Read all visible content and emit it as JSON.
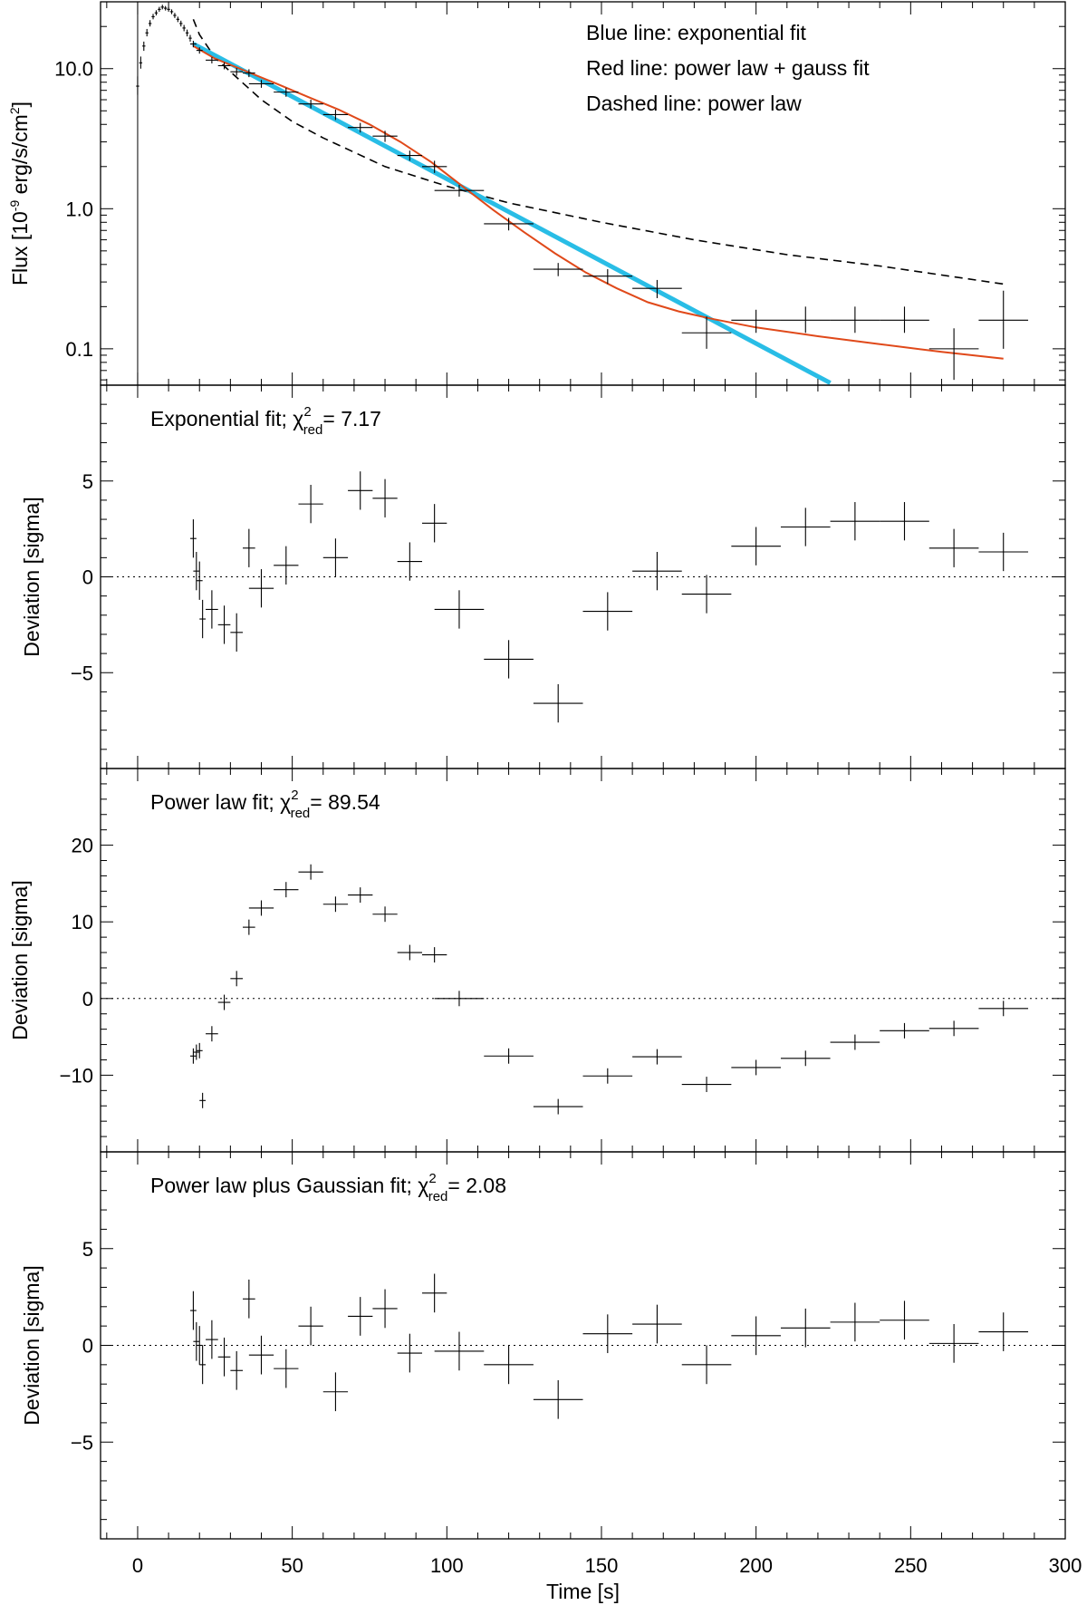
{
  "chart_data": [
    {
      "id": "flux",
      "type": "scatter",
      "yscale": "log",
      "ylabel_prefix": "Flux [10",
      "ylabel_exp": "-9",
      "ylabel_mid": " erg/s/cm",
      "ylabel_sup": "2",
      "ylabel_suffix": "]",
      "ylim": [
        0.055,
        30
      ],
      "xlim": [
        -12,
        300
      ],
      "yticks": [
        0.1,
        1.0,
        10.0
      ],
      "ytick_labels": [
        "0.1",
        "1.0",
        "10.0"
      ],
      "vline_x": 0,
      "legend": [
        "Blue line: exponential fit",
        "Red line: power law + gauss fit",
        "Dashed line: power law"
      ],
      "colors": {
        "exponential": "#29bde6",
        "powergauss": "#e0491a",
        "data": "#000000",
        "powerlaw": "#000000"
      },
      "points": [
        {
          "x": 0,
          "y": 7.5,
          "xerr": 0,
          "yerr": [
            6.5,
            8.8
          ]
        },
        {
          "x": 1,
          "y": 11.0,
          "xerr": 0,
          "yerr": [
            10.0,
            12.2
          ]
        },
        {
          "x": 2,
          "y": 14.5,
          "xerr": 0,
          "yerr": [
            13.4,
            15.6
          ]
        },
        {
          "x": 3,
          "y": 18.0,
          "xerr": 0,
          "yerr": [
            17.0,
            19.2
          ]
        },
        {
          "x": 4,
          "y": 21.0,
          "xerr": 0,
          "yerr": [
            20.0,
            22.2
          ]
        },
        {
          "x": 5,
          "y": 23.5,
          "xerr": 0,
          "yerr": [
            22.5,
            24.6
          ]
        },
        {
          "x": 6,
          "y": 25.0,
          "xerr": 0,
          "yerr": [
            24.0,
            26.1
          ]
        },
        {
          "x": 7,
          "y": 26.5,
          "xerr": 0,
          "yerr": [
            25.5,
            27.6
          ]
        },
        {
          "x": 8,
          "y": 27.5,
          "xerr": 0,
          "yerr": [
            26.5,
            28.6
          ]
        },
        {
          "x": 9,
          "y": 27.0,
          "xerr": 0,
          "yerr": [
            26.0,
            28.0
          ]
        },
        {
          "x": 10,
          "y": 26.5,
          "xerr": 0,
          "yerr": [
            25.5,
            27.5
          ]
        },
        {
          "x": 11,
          "y": 25.5,
          "xerr": 0,
          "yerr": [
            24.5,
            26.5
          ]
        },
        {
          "x": 12,
          "y": 24.0,
          "xerr": 0,
          "yerr": [
            23.0,
            25.0
          ]
        },
        {
          "x": 13,
          "y": 22.5,
          "xerr": 0,
          "yerr": [
            21.5,
            23.5
          ]
        },
        {
          "x": 14,
          "y": 21.0,
          "xerr": 0,
          "yerr": [
            20.0,
            22.0
          ]
        },
        {
          "x": 15,
          "y": 19.5,
          "xerr": 0,
          "yerr": [
            18.5,
            20.5
          ]
        },
        {
          "x": 16,
          "y": 18.0,
          "xerr": 0,
          "yerr": [
            17.0,
            19.0
          ]
        },
        {
          "x": 17,
          "y": 16.5,
          "xerr": 0,
          "yerr": [
            15.6,
            17.4
          ]
        },
        {
          "x": 18,
          "y": 15.0,
          "xerr": 1,
          "yerr": [
            14.2,
            15.8
          ]
        },
        {
          "x": 20,
          "y": 13.5,
          "xerr": 1,
          "yerr": [
            12.8,
            14.2
          ]
        },
        {
          "x": 24,
          "y": 11.5,
          "xerr": 2,
          "yerr": [
            10.9,
            12.1
          ]
        },
        {
          "x": 28,
          "y": 10.5,
          "xerr": 2,
          "yerr": [
            9.9,
            11.1
          ]
        },
        {
          "x": 32,
          "y": 9.5,
          "xerr": 2,
          "yerr": [
            8.9,
            10.1
          ]
        },
        {
          "x": 36,
          "y": 9.3,
          "xerr": 2,
          "yerr": [
            8.7,
            9.9
          ]
        },
        {
          "x": 40,
          "y": 7.8,
          "xerr": 4,
          "yerr": [
            7.3,
            8.3
          ]
        },
        {
          "x": 48,
          "y": 6.8,
          "xerr": 4,
          "yerr": [
            6.3,
            7.3
          ]
        },
        {
          "x": 56,
          "y": 5.6,
          "xerr": 4,
          "yerr": [
            5.2,
            6.0
          ]
        },
        {
          "x": 64,
          "y": 4.7,
          "xerr": 4,
          "yerr": [
            4.3,
            5.1
          ]
        },
        {
          "x": 72,
          "y": 3.8,
          "xerr": 4,
          "yerr": [
            3.5,
            4.1
          ]
        },
        {
          "x": 80,
          "y": 3.3,
          "xerr": 4,
          "yerr": [
            3.0,
            3.6
          ]
        },
        {
          "x": 88,
          "y": 2.4,
          "xerr": 4,
          "yerr": [
            2.2,
            2.6
          ]
        },
        {
          "x": 96,
          "y": 2.0,
          "xerr": 4,
          "yerr": [
            1.8,
            2.2
          ]
        },
        {
          "x": 104,
          "y": 1.35,
          "xerr": 8,
          "yerr": [
            1.22,
            1.48
          ]
        },
        {
          "x": 120,
          "y": 0.78,
          "xerr": 8,
          "yerr": [
            0.7,
            0.86
          ]
        },
        {
          "x": 136,
          "y": 0.37,
          "xerr": 8,
          "yerr": [
            0.33,
            0.41
          ]
        },
        {
          "x": 152,
          "y": 0.33,
          "xerr": 8,
          "yerr": [
            0.29,
            0.37
          ]
        },
        {
          "x": 168,
          "y": 0.27,
          "xerr": 8,
          "yerr": [
            0.23,
            0.31
          ]
        },
        {
          "x": 184,
          "y": 0.13,
          "xerr": 8,
          "yerr": [
            0.1,
            0.17
          ]
        },
        {
          "x": 200,
          "y": 0.16,
          "xerr": 8,
          "yerr": [
            0.13,
            0.19
          ]
        },
        {
          "x": 216,
          "y": 0.16,
          "xerr": 8,
          "yerr": [
            0.13,
            0.2
          ]
        },
        {
          "x": 232,
          "y": 0.16,
          "xerr": 8,
          "yerr": [
            0.13,
            0.2
          ]
        },
        {
          "x": 248,
          "y": 0.16,
          "xerr": 8,
          "yerr": [
            0.13,
            0.2
          ]
        },
        {
          "x": 264,
          "y": 0.1,
          "xerr": 8,
          "yerr": [
            0.06,
            0.14
          ]
        },
        {
          "x": 280,
          "y": 0.16,
          "xerr": 8,
          "yerr": [
            0.1,
            0.26
          ]
        }
      ],
      "exponential_fit": {
        "x": [
          18,
          224
        ],
        "y": [
          15.0,
          0.057
        ]
      },
      "powerlaw_gauss_fit": {
        "x": [
          18,
          25,
          35,
          45,
          55,
          65,
          75,
          85,
          95,
          105,
          115,
          125,
          135,
          145,
          155,
          165,
          175,
          185,
          200,
          220,
          240,
          260,
          280
        ],
        "y": [
          14.5,
          11.8,
          9.6,
          7.8,
          6.3,
          5.1,
          4.0,
          3.0,
          2.15,
          1.45,
          0.98,
          0.68,
          0.48,
          0.35,
          0.27,
          0.215,
          0.185,
          0.165,
          0.142,
          0.123,
          0.108,
          0.095,
          0.085
        ]
      },
      "powerlaw_fit": {
        "x": [
          18,
          20,
          25,
          30,
          40,
          50,
          60,
          80,
          100,
          120,
          150,
          180,
          210,
          240,
          280
        ],
        "y": [
          22.5,
          17.5,
          12.0,
          9.5,
          6.0,
          4.2,
          3.2,
          2.0,
          1.45,
          1.1,
          0.8,
          0.6,
          0.47,
          0.39,
          0.29
        ]
      }
    },
    {
      "id": "exp-resid",
      "type": "scatter",
      "title_text": "Exponential fit;",
      "chi_value": "7.17",
      "ylabel": "Deviation [sigma]",
      "ylim": [
        -10,
        10
      ],
      "xlim": [
        -12,
        300
      ],
      "yticks": [
        -5,
        0,
        5
      ],
      "ytick_labels": [
        "−5",
        "0",
        "5"
      ],
      "points": [
        {
          "x": 18,
          "y": 2.0,
          "xerr": 1,
          "yerr": 1.0
        },
        {
          "x": 19,
          "y": 0.3,
          "xerr": 1,
          "yerr": 1.0
        },
        {
          "x": 20,
          "y": -0.2,
          "xerr": 1,
          "yerr": 1.0
        },
        {
          "x": 21,
          "y": -2.2,
          "xerr": 1,
          "yerr": 1.0
        },
        {
          "x": 24,
          "y": -1.7,
          "xerr": 2,
          "yerr": 1.0
        },
        {
          "x": 28,
          "y": -2.5,
          "xerr": 2,
          "yerr": 1.0
        },
        {
          "x": 32,
          "y": -2.9,
          "xerr": 2,
          "yerr": 1.0
        },
        {
          "x": 36,
          "y": 1.5,
          "xerr": 2,
          "yerr": 1.0
        },
        {
          "x": 40,
          "y": -0.6,
          "xerr": 4,
          "yerr": 1.0
        },
        {
          "x": 48,
          "y": 0.6,
          "xerr": 4,
          "yerr": 1.0
        },
        {
          "x": 56,
          "y": 3.8,
          "xerr": 4,
          "yerr": 1.0
        },
        {
          "x": 64,
          "y": 1.0,
          "xerr": 4,
          "yerr": 1.0
        },
        {
          "x": 72,
          "y": 4.5,
          "xerr": 4,
          "yerr": 1.0
        },
        {
          "x": 80,
          "y": 4.1,
          "xerr": 4,
          "yerr": 1.0
        },
        {
          "x": 88,
          "y": 0.8,
          "xerr": 4,
          "yerr": 1.0
        },
        {
          "x": 96,
          "y": 2.8,
          "xerr": 4,
          "yerr": 1.0
        },
        {
          "x": 104,
          "y": -1.7,
          "xerr": 8,
          "yerr": 1.0
        },
        {
          "x": 120,
          "y": -4.3,
          "xerr": 8,
          "yerr": 1.0
        },
        {
          "x": 136,
          "y": -6.6,
          "xerr": 8,
          "yerr": 1.0
        },
        {
          "x": 152,
          "y": -1.8,
          "xerr": 8,
          "yerr": 1.0
        },
        {
          "x": 168,
          "y": 0.3,
          "xerr": 8,
          "yerr": 1.0
        },
        {
          "x": 184,
          "y": -0.9,
          "xerr": 8,
          "yerr": 1.0
        },
        {
          "x": 200,
          "y": 1.6,
          "xerr": 8,
          "yerr": 1.0
        },
        {
          "x": 216,
          "y": 2.6,
          "xerr": 8,
          "yerr": 1.0
        },
        {
          "x": 232,
          "y": 2.9,
          "xerr": 8,
          "yerr": 1.0
        },
        {
          "x": 248,
          "y": 2.9,
          "xerr": 8,
          "yerr": 1.0
        },
        {
          "x": 264,
          "y": 1.5,
          "xerr": 8,
          "yerr": 1.0
        },
        {
          "x": 280,
          "y": 1.3,
          "xerr": 8,
          "yerr": 1.0
        }
      ]
    },
    {
      "id": "pl-resid",
      "type": "scatter",
      "title_text": "Power law fit;",
      "chi_value": "89.54",
      "ylabel": "Deviation [sigma]",
      "ylim": [
        -20,
        30
      ],
      "xlim": [
        -12,
        300
      ],
      "yticks": [
        -10,
        0,
        10,
        20
      ],
      "ytick_labels": [
        "−10",
        "0",
        "10",
        "20"
      ],
      "points": [
        {
          "x": 18,
          "y": -7.5,
          "xerr": 1,
          "yerr": 1.0
        },
        {
          "x": 19,
          "y": -7.0,
          "xerr": 1,
          "yerr": 1.0
        },
        {
          "x": 20,
          "y": -6.8,
          "xerr": 1,
          "yerr": 1.0
        },
        {
          "x": 21,
          "y": -13.3,
          "xerr": 1,
          "yerr": 1.0
        },
        {
          "x": 24,
          "y": -4.6,
          "xerr": 2,
          "yerr": 1.0
        },
        {
          "x": 28,
          "y": -0.5,
          "xerr": 2,
          "yerr": 1.0
        },
        {
          "x": 32,
          "y": 2.6,
          "xerr": 2,
          "yerr": 1.0
        },
        {
          "x": 36,
          "y": 9.3,
          "xerr": 2,
          "yerr": 1.0
        },
        {
          "x": 40,
          "y": 11.8,
          "xerr": 4,
          "yerr": 1.0
        },
        {
          "x": 48,
          "y": 14.2,
          "xerr": 4,
          "yerr": 1.0
        },
        {
          "x": 56,
          "y": 16.5,
          "xerr": 4,
          "yerr": 1.0
        },
        {
          "x": 64,
          "y": 12.3,
          "xerr": 4,
          "yerr": 1.0
        },
        {
          "x": 72,
          "y": 13.5,
          "xerr": 4,
          "yerr": 1.0
        },
        {
          "x": 80,
          "y": 11.0,
          "xerr": 4,
          "yerr": 1.0
        },
        {
          "x": 88,
          "y": 6.0,
          "xerr": 4,
          "yerr": 1.0
        },
        {
          "x": 96,
          "y": 5.7,
          "xerr": 4,
          "yerr": 1.0
        },
        {
          "x": 104,
          "y": 0.0,
          "xerr": 8,
          "yerr": 1.0
        },
        {
          "x": 120,
          "y": -7.5,
          "xerr": 8,
          "yerr": 1.0
        },
        {
          "x": 136,
          "y": -14.1,
          "xerr": 8,
          "yerr": 1.0
        },
        {
          "x": 152,
          "y": -10.1,
          "xerr": 8,
          "yerr": 1.0
        },
        {
          "x": 168,
          "y": -7.6,
          "xerr": 8,
          "yerr": 1.0
        },
        {
          "x": 184,
          "y": -11.2,
          "xerr": 8,
          "yerr": 1.0
        },
        {
          "x": 200,
          "y": -9.0,
          "xerr": 8,
          "yerr": 1.0
        },
        {
          "x": 216,
          "y": -7.8,
          "xerr": 8,
          "yerr": 1.0
        },
        {
          "x": 232,
          "y": -5.7,
          "xerr": 8,
          "yerr": 1.0
        },
        {
          "x": 248,
          "y": -4.2,
          "xerr": 8,
          "yerr": 1.0
        },
        {
          "x": 264,
          "y": -3.9,
          "xerr": 8,
          "yerr": 1.0
        },
        {
          "x": 280,
          "y": -1.3,
          "xerr": 8,
          "yerr": 1.0
        }
      ]
    },
    {
      "id": "plg-resid",
      "type": "scatter",
      "title_text": "Power law plus Gaussian fit;",
      "chi_value": "2.08",
      "ylabel": "Deviation [sigma]",
      "ylim": [
        -10,
        10
      ],
      "xlim": [
        -12,
        300
      ],
      "yticks": [
        -5,
        0,
        5
      ],
      "ytick_labels": [
        "−5",
        "0",
        "5"
      ],
      "xticks": [
        0,
        50,
        100,
        150,
        200,
        250,
        300
      ],
      "xtick_labels": [
        "0",
        "50",
        "100",
        "150",
        "200",
        "250",
        "300"
      ],
      "xlabel": "Time [s]",
      "points": [
        {
          "x": 18,
          "y": 1.8,
          "xerr": 1,
          "yerr": 1.0
        },
        {
          "x": 19,
          "y": 0.2,
          "xerr": 1,
          "yerr": 1.0
        },
        {
          "x": 20,
          "y": 0.0,
          "xerr": 1,
          "yerr": 1.0
        },
        {
          "x": 21,
          "y": -1.0,
          "xerr": 1,
          "yerr": 1.0
        },
        {
          "x": 24,
          "y": 0.3,
          "xerr": 2,
          "yerr": 1.0
        },
        {
          "x": 28,
          "y": -0.6,
          "xerr": 2,
          "yerr": 1.0
        },
        {
          "x": 32,
          "y": -1.3,
          "xerr": 2,
          "yerr": 1.0
        },
        {
          "x": 36,
          "y": 2.4,
          "xerr": 2,
          "yerr": 1.0
        },
        {
          "x": 40,
          "y": -0.5,
          "xerr": 4,
          "yerr": 1.0
        },
        {
          "x": 48,
          "y": -1.2,
          "xerr": 4,
          "yerr": 1.0
        },
        {
          "x": 56,
          "y": 1.0,
          "xerr": 4,
          "yerr": 1.0
        },
        {
          "x": 64,
          "y": -2.4,
          "xerr": 4,
          "yerr": 1.0
        },
        {
          "x": 72,
          "y": 1.5,
          "xerr": 4,
          "yerr": 1.0
        },
        {
          "x": 80,
          "y": 1.9,
          "xerr": 4,
          "yerr": 1.0
        },
        {
          "x": 88,
          "y": -0.4,
          "xerr": 4,
          "yerr": 1.0
        },
        {
          "x": 96,
          "y": 2.7,
          "xerr": 4,
          "yerr": 1.0
        },
        {
          "x": 104,
          "y": -0.3,
          "xerr": 8,
          "yerr": 1.0
        },
        {
          "x": 120,
          "y": -1.0,
          "xerr": 8,
          "yerr": 1.0
        },
        {
          "x": 136,
          "y": -2.8,
          "xerr": 8,
          "yerr": 1.0
        },
        {
          "x": 152,
          "y": 0.6,
          "xerr": 8,
          "yerr": 1.0
        },
        {
          "x": 168,
          "y": 1.1,
          "xerr": 8,
          "yerr": 1.0
        },
        {
          "x": 184,
          "y": -1.0,
          "xerr": 8,
          "yerr": 1.0
        },
        {
          "x": 200,
          "y": 0.5,
          "xerr": 8,
          "yerr": 1.0
        },
        {
          "x": 216,
          "y": 0.9,
          "xerr": 8,
          "yerr": 1.0
        },
        {
          "x": 232,
          "y": 1.2,
          "xerr": 8,
          "yerr": 1.0
        },
        {
          "x": 248,
          "y": 1.3,
          "xerr": 8,
          "yerr": 1.0
        },
        {
          "x": 264,
          "y": 0.1,
          "xerr": 8,
          "yerr": 1.0
        },
        {
          "x": 280,
          "y": 0.7,
          "xerr": 8,
          "yerr": 1.0
        }
      ]
    }
  ],
  "chi_symbol": "χ",
  "chi_sup": "2",
  "chi_sub": "red",
  "chi_eq": "="
}
